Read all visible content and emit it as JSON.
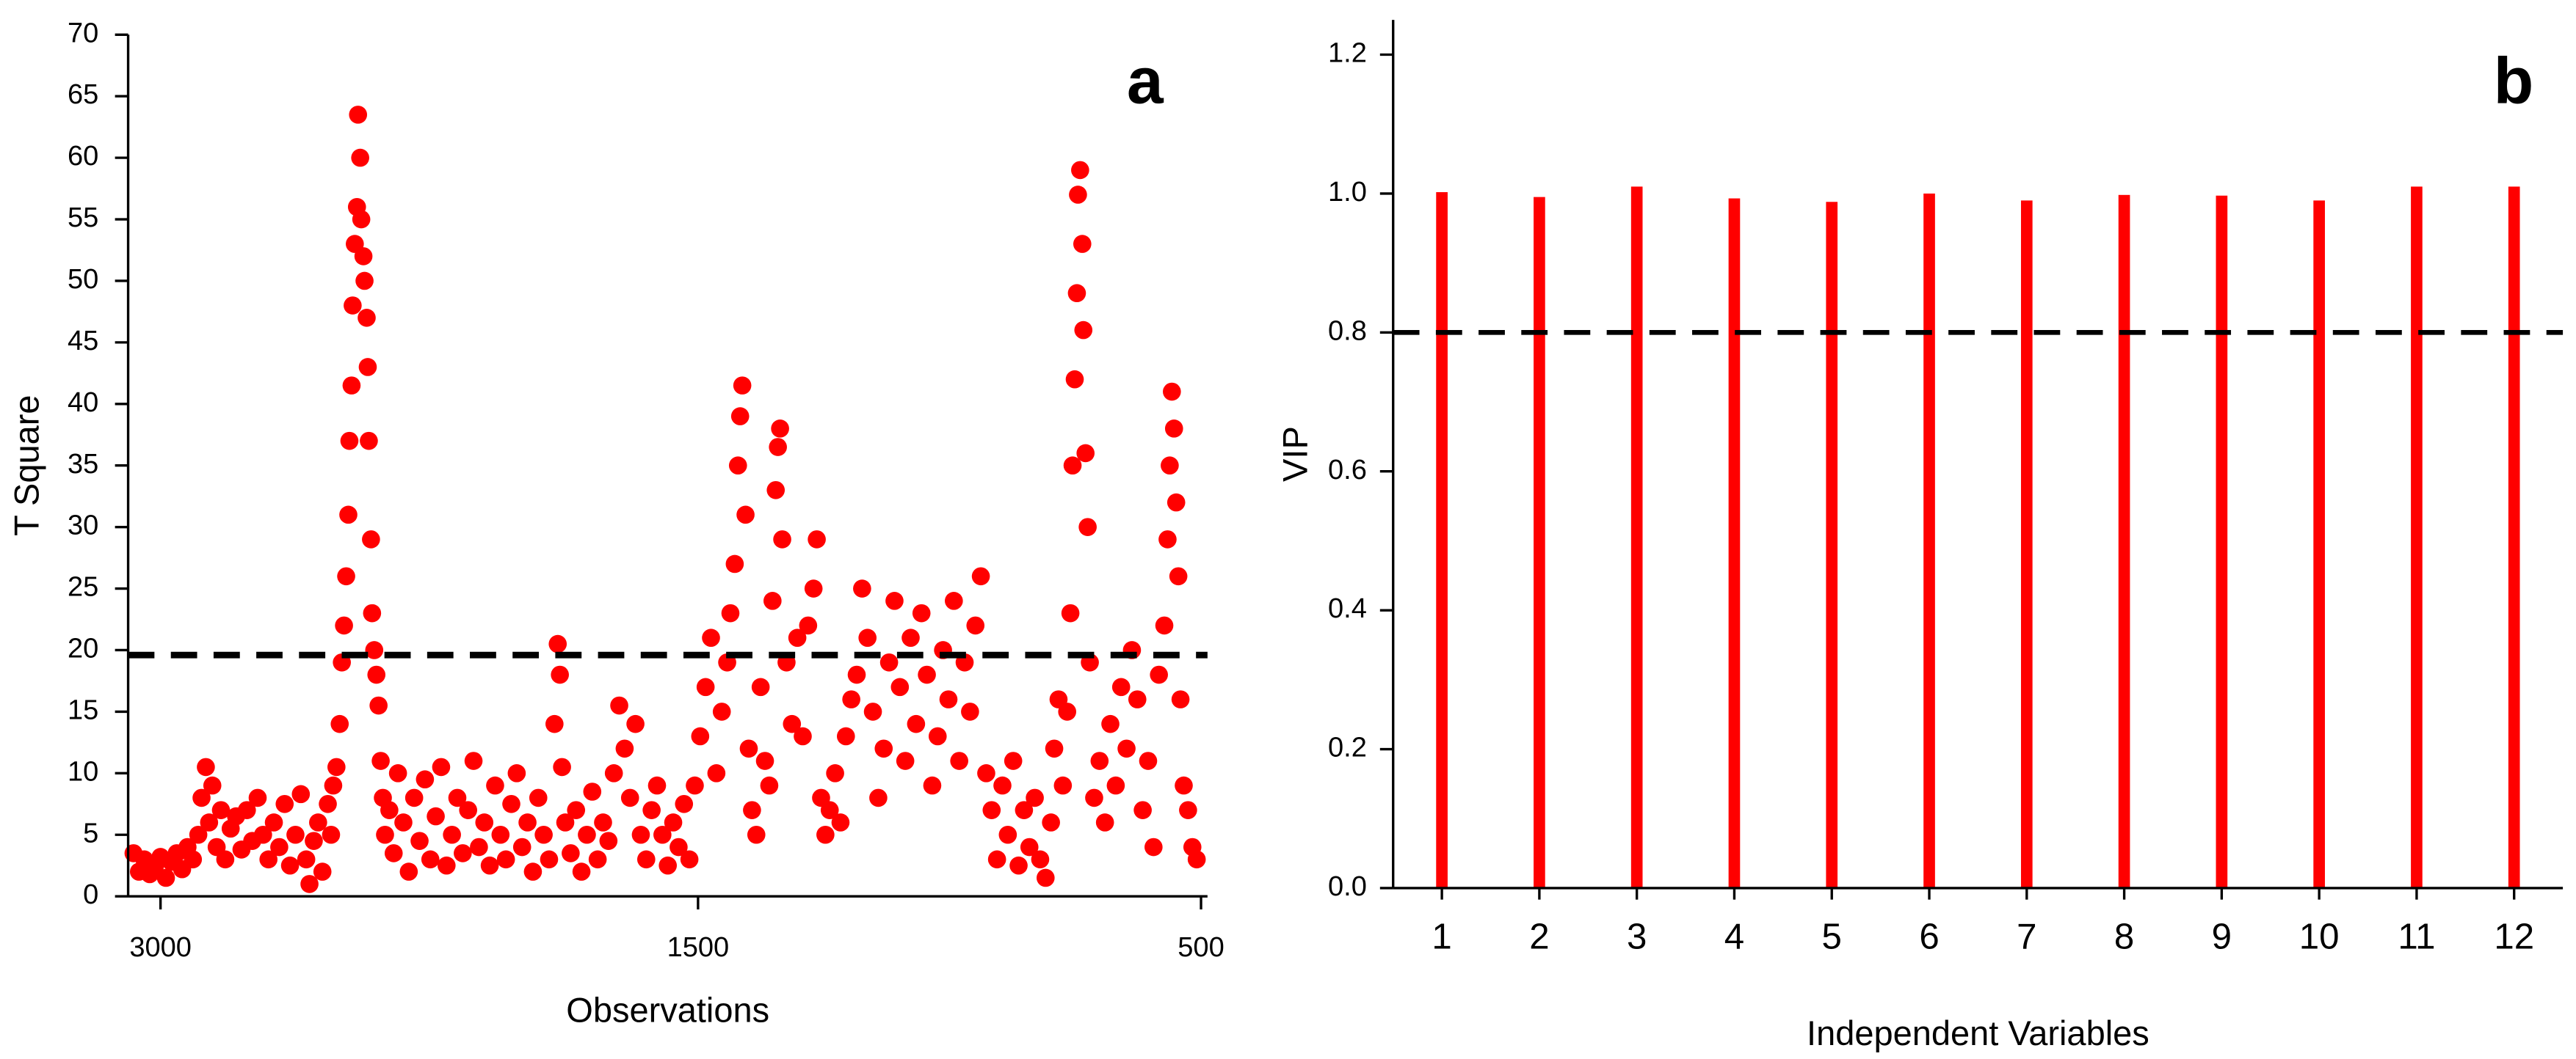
{
  "chart_data": [
    {
      "type": "scatter",
      "panel": "a",
      "x_label": "Observations",
      "y_label": "T Square",
      "color": "#ff0000",
      "threshold": 19.6,
      "xlim": [
        0,
        1000
      ],
      "ylim": [
        0,
        70
      ],
      "xticks": [
        {
          "value": 30,
          "label": "3000"
        },
        {
          "value": 528,
          "label": "1500"
        },
        {
          "value": 994,
          "label": "500"
        }
      ],
      "yticks": [
        0,
        5,
        10,
        15,
        20,
        25,
        30,
        35,
        40,
        45,
        50,
        55,
        60,
        65,
        70
      ],
      "x": [
        5,
        10,
        15,
        20,
        25,
        30,
        35,
        40,
        45,
        50,
        55,
        60,
        65,
        68,
        72,
        75,
        78,
        82,
        86,
        90,
        95,
        100,
        105,
        110,
        115,
        120,
        125,
        130,
        135,
        140,
        145,
        150,
        155,
        160,
        165,
        168,
        172,
        176,
        180,
        185,
        188,
        190,
        193,
        196,
        198,
        200,
        202,
        204,
        205,
        207,
        208,
        210,
        212,
        213,
        215,
        216,
        218,
        219,
        221,
        222,
        223,
        225,
        226,
        228,
        230,
        232,
        234,
        236,
        238,
        242,
        246,
        250,
        255,
        260,
        265,
        270,
        275,
        280,
        285,
        290,
        295,
        300,
        305,
        310,
        315,
        320,
        325,
        330,
        335,
        340,
        345,
        350,
        355,
        360,
        365,
        370,
        375,
        380,
        385,
        390,
        395,
        398,
        400,
        402,
        405,
        410,
        415,
        420,
        425,
        430,
        435,
        440,
        445,
        450,
        455,
        460,
        465,
        470,
        475,
        480,
        485,
        490,
        495,
        500,
        505,
        510,
        515,
        520,
        525,
        530,
        535,
        540,
        545,
        550,
        555,
        558,
        562,
        565,
        567,
        569,
        572,
        575,
        578,
        582,
        586,
        590,
        594,
        597,
        600,
        602,
        604,
        606,
        610,
        615,
        620,
        625,
        630,
        635,
        638,
        642,
        646,
        650,
        655,
        660,
        665,
        670,
        675,
        680,
        685,
        690,
        695,
        700,
        705,
        710,
        715,
        720,
        725,
        730,
        735,
        740,
        745,
        750,
        755,
        760,
        765,
        770,
        775,
        780,
        785,
        790,
        795,
        800,
        805,
        810,
        815,
        820,
        825,
        830,
        835,
        840,
        845,
        850,
        855,
        858,
        862,
        866,
        870,
        873,
        875,
        877,
        879,
        880,
        882,
        884,
        885,
        887,
        889,
        891,
        895,
        900,
        905,
        910,
        915,
        920,
        925,
        930,
        935,
        940,
        945,
        950,
        955,
        960,
        963,
        965,
        967,
        969,
        971,
        973,
        975,
        978,
        982,
        986,
        990
      ],
      "y": [
        3.5,
        2,
        3,
        1.8,
        2.5,
        3.2,
        1.5,
        2.8,
        3.5,
        2.2,
        4,
        3,
        5,
        8,
        10.5,
        6,
        9,
        4,
        7,
        3,
        5.5,
        6.5,
        3.8,
        7,
        4.5,
        8,
        5,
        3,
        6,
        4,
        7.5,
        2.5,
        5,
        8.3,
        3,
        1,
        4.5,
        6,
        2,
        7.5,
        5,
        9,
        10.5,
        14,
        19,
        22,
        26,
        31,
        37,
        41.5,
        48,
        53,
        56,
        63.5,
        60,
        55,
        52,
        50,
        47,
        43,
        37,
        29,
        23,
        20,
        18,
        15.5,
        11,
        8,
        5,
        7,
        3.5,
        10,
        6,
        2,
        8,
        4.5,
        9.5,
        3,
        6.5,
        10.5,
        2.5,
        5,
        8,
        3.5,
        7,
        11,
        4,
        6,
        2.5,
        9,
        5,
        3,
        7.5,
        10,
        4,
        6,
        2,
        8,
        5,
        3,
        14,
        20.5,
        18,
        10.5,
        6,
        3.5,
        7,
        2,
        5,
        8.5,
        3,
        6,
        4.5,
        10,
        15.5,
        12,
        8,
        14,
        5,
        3,
        7,
        9,
        5,
        2.5,
        6,
        4,
        7.5,
        3,
        9,
        13,
        17,
        21,
        10,
        15,
        19,
        23,
        27,
        35,
        39,
        41.5,
        31,
        12,
        7,
        5,
        17,
        11,
        9,
        24,
        33,
        36.5,
        38,
        29,
        19,
        14,
        21,
        13,
        22,
        25,
        29,
        8,
        5,
        7,
        10,
        6,
        13,
        16,
        18,
        25,
        21,
        15,
        8,
        12,
        19,
        24,
        17,
        11,
        21,
        14,
        23,
        18,
        9,
        13,
        20,
        16,
        24,
        11,
        19,
        15,
        22,
        26,
        10,
        7,
        3,
        9,
        5,
        11,
        2.5,
        7,
        4,
        8,
        3,
        1.5,
        6,
        12,
        16,
        9,
        15,
        23,
        35,
        42,
        49,
        57,
        59,
        53,
        46,
        36,
        30,
        19,
        8,
        11,
        6,
        14,
        9,
        17,
        12,
        20,
        16,
        7,
        11,
        4,
        18,
        22,
        29,
        35,
        41,
        38,
        32,
        26,
        16,
        9,
        7,
        4,
        3
      ]
    },
    {
      "type": "bar",
      "panel": "b",
      "x_label": "Independent Variables",
      "y_label": "VIP",
      "color": "#ff0000",
      "threshold": 0.8,
      "categories": [
        "1",
        "2",
        "3",
        "4",
        "5",
        "6",
        "7",
        "8",
        "9",
        "10",
        "11",
        "12"
      ],
      "values": [
        1.002,
        0.995,
        1.01,
        0.993,
        0.988,
        1.0,
        0.99,
        0.998,
        0.997,
        0.99,
        1.01,
        1.01
      ],
      "ylim": [
        0,
        1.25
      ],
      "yticks": [
        {
          "value": 0,
          "label": "0.0"
        },
        0.2,
        0.4,
        0.6,
        0.8,
        {
          "value": 1,
          "label": "1.0"
        },
        1.2
      ]
    }
  ]
}
